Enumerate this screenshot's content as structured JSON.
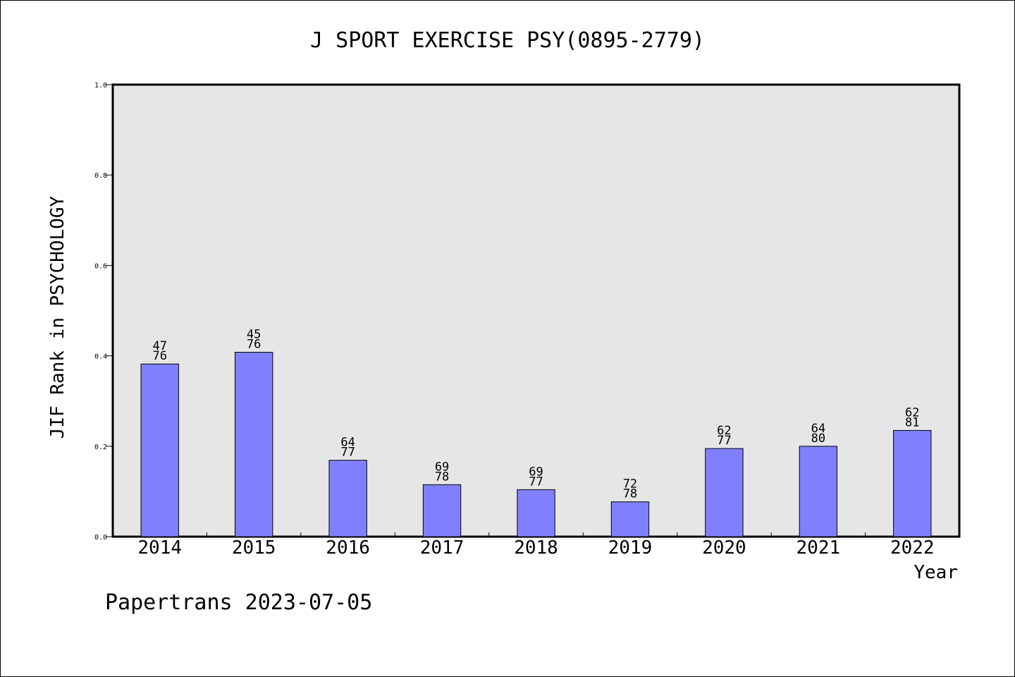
{
  "chart_data": {
    "type": "bar",
    "title": "J SPORT EXERCISE PSY(0895-2779)",
    "xlabel": "Year",
    "ylabel": "JIF Rank in PSYCHOLOGY",
    "footer": "Papertrans 2023-07-05",
    "categories": [
      "2014",
      "2015",
      "2016",
      "2017",
      "2018",
      "2019",
      "2020",
      "2021",
      "2022"
    ],
    "values": [
      0.382,
      0.408,
      0.169,
      0.115,
      0.104,
      0.077,
      0.195,
      0.2,
      0.235
    ],
    "ranks": [
      "47",
      "45",
      "64",
      "69",
      "69",
      "72",
      "62",
      "64",
      "62"
    ],
    "totals": [
      "76",
      "76",
      "77",
      "78",
      "77",
      "78",
      "77",
      "80",
      "81"
    ],
    "ylim": [
      0,
      1.0
    ],
    "yticks": [
      "0.0",
      "0.2",
      "0.4",
      "0.6",
      "0.8",
      "1.0"
    ],
    "grid": false,
    "colors": {
      "bar": "#8080ff",
      "plot_bg": "#e6e6e6",
      "axis": "#000000"
    }
  }
}
